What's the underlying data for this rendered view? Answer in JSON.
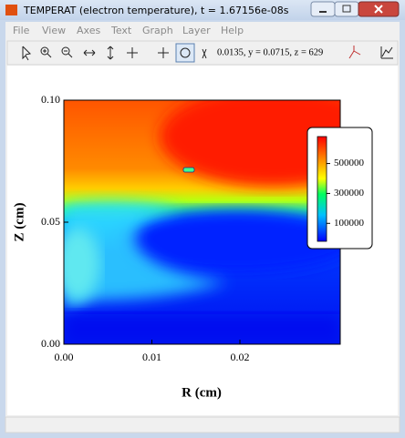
{
  "window": {
    "title": "TEMPERAT (electron temperature), t = 1.67156e-08s",
    "menu": [
      "File",
      "View",
      "Axes",
      "Text",
      "Graph",
      "Layer",
      "Help"
    ],
    "coordinates": "0.0135, y = 0.0715,  z = 629"
  },
  "plot": {
    "xlabel": "R (cm)",
    "ylabel": "Z (cm)",
    "xlim": [
      0,
      0.0314
    ],
    "ylim": [
      0,
      0.1
    ],
    "xticks": [
      {
        "value": 0,
        "label": "0.00"
      },
      {
        "value": 0.01,
        "label": "0.01"
      },
      {
        "value": 0.02,
        "label": "0.02"
      }
    ],
    "yticks": [
      {
        "value": 0,
        "label": "0.00"
      },
      {
        "value": 0.05,
        "label": "0.05"
      },
      {
        "value": 0.1,
        "label": "0.10"
      }
    ],
    "colorbar": {
      "lim": [
        -20000,
        680000
      ],
      "ticks": [
        100000,
        300000,
        500000
      ]
    }
  }
}
